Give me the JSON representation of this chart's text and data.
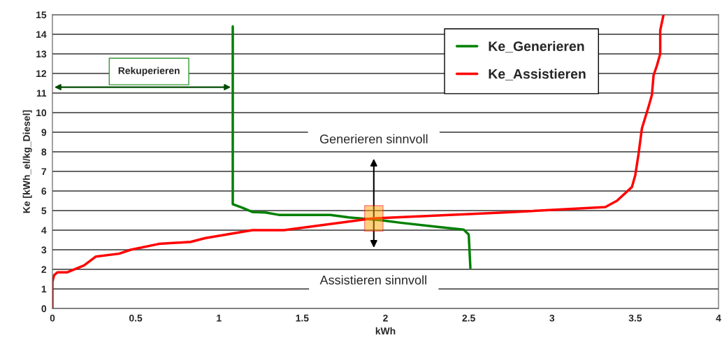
{
  "chart_data": {
    "type": "line",
    "xlabel": "kWh",
    "ylabel": "Ke [kWh_el/kg_Diesel]",
    "series": [
      {
        "name": "Ke_Generieren",
        "color": "#008000",
        "x": [
          1.083,
          1.083,
          1.14,
          1.2,
          1.28,
          1.36,
          1.67,
          1.78,
          1.98,
          2.09,
          2.34,
          2.47,
          2.5,
          2.51
        ],
        "values": [
          14.4,
          5.33,
          5.15,
          4.93,
          4.9,
          4.78,
          4.78,
          4.65,
          4.5,
          4.38,
          4.14,
          4.03,
          3.78,
          2.07
        ]
      },
      {
        "name": "Ke_Assistieren",
        "color": "#ff0000",
        "x": [
          0,
          0,
          0.01,
          0.03,
          0.09,
          0.19,
          0.26,
          0.4,
          0.47,
          0.64,
          0.83,
          0.92,
          1.2,
          1.39,
          1.92,
          2.71,
          3.32,
          3.39,
          3.48,
          3.5,
          3.52,
          3.54,
          3.58,
          3.6,
          3.61,
          3.63,
          3.65,
          3.65,
          3.67
        ],
        "values": [
          0,
          1.35,
          1.7,
          1.85,
          1.85,
          2.2,
          2.65,
          2.8,
          3.0,
          3.3,
          3.4,
          3.6,
          4.0,
          4.0,
          4.6,
          4.9,
          5.18,
          5.5,
          6.2,
          6.8,
          7.9,
          9.2,
          10.3,
          10.9,
          11.9,
          12.4,
          13.0,
          14.2,
          15.0
        ]
      }
    ],
    "xlim": [
      0,
      4
    ],
    "xticks": [
      0,
      0.5,
      1,
      1.5,
      2,
      2.5,
      3,
      3.5,
      4
    ],
    "ylim": [
      0,
      15
    ],
    "yticks": [
      0,
      1,
      2,
      3,
      4,
      5,
      6,
      7,
      8,
      9,
      10,
      11,
      12,
      13,
      14,
      15
    ],
    "grid": "y",
    "legend": "top right",
    "marker": "none",
    "line_style": "solid",
    "annotations": [
      "Rekuperieren",
      "Generieren sinnvoll",
      "Assistieren sinnvoll"
    ]
  }
}
